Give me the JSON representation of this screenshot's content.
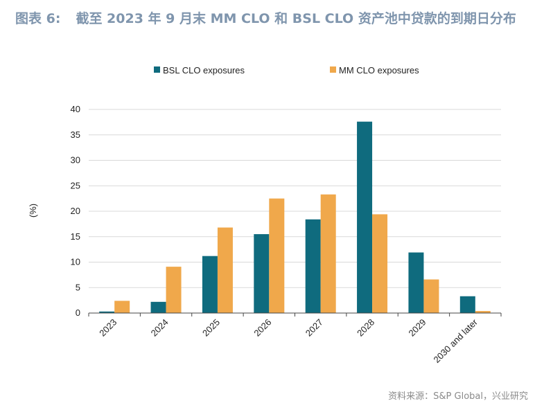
{
  "figure": {
    "number": "图表 6:",
    "title": "截至 2023 年 9 月末 MM CLO 和 BSL CLO 资产池中贷款的到期日分布"
  },
  "source": "资料来源：S&P Global，兴业研究",
  "colors": {
    "bsl": "#0f6b7e",
    "mm": "#f0a84b",
    "grid": "#d9d9d9",
    "axis": "#444444",
    "title": "#7f95ad"
  },
  "chart_data": {
    "type": "bar",
    "categories": [
      "2023",
      "2024",
      "2025",
      "2026",
      "2027",
      "2028",
      "2029",
      "2030 and later"
    ],
    "series": [
      {
        "name": "BSL CLO exposures",
        "values": [
          0.3,
          2.2,
          11.2,
          15.5,
          18.4,
          37.6,
          11.9,
          3.3
        ]
      },
      {
        "name": "MM CLO exposures",
        "values": [
          2.4,
          9.1,
          16.8,
          22.5,
          23.3,
          19.4,
          6.6,
          0.4
        ]
      }
    ],
    "ylabel": "(%)",
    "ylim": [
      0,
      40
    ],
    "yticks": [
      0,
      5,
      10,
      15,
      20,
      25,
      30,
      35,
      40
    ],
    "grid": true,
    "legend": "top"
  }
}
